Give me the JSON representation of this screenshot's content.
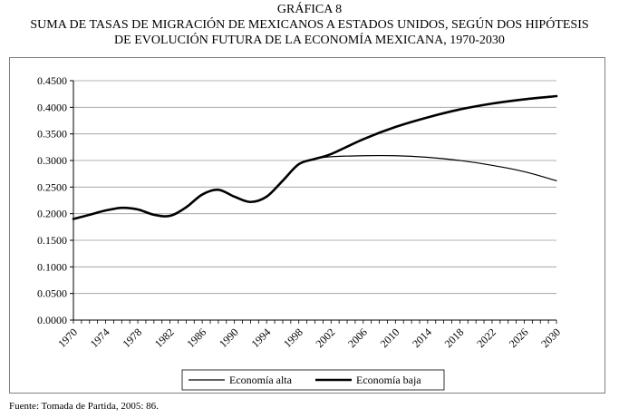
{
  "header": {
    "label": "GRÁFICA 8",
    "title_line1": "SUMA DE TASAS DE MIGRACIÓN DE MEXICANOS A ESTADOS UNIDOS, SEGÚN DOS HIPÓTESIS",
    "title_line2": "DE EVOLUCIÓN FUTURA DE LA ECONOMÍA MEXICANA, 1970-2030"
  },
  "source": "Fuente: Tomada de Partida, 2005: 86.",
  "chart_data": {
    "type": "line",
    "title": "SUMA DE TASAS DE MIGRACIÓN DE MEXICANOS A ESTADOS UNIDOS, SEGÚN DOS HIPÓTESIS DE EVOLUCIÓN FUTURA DE LA ECONOMÍA MEXICANA, 1970-2030",
    "xlabel": "",
    "ylabel": "",
    "xlim": [
      1970,
      2030
    ],
    "ylim": [
      0,
      0.45
    ],
    "x_tick_labels": [
      "1970",
      "1974",
      "1978",
      "1982",
      "1986",
      "1990",
      "1994",
      "1998",
      "2002",
      "2006",
      "2010",
      "2014",
      "2018",
      "2022",
      "2026",
      "2030"
    ],
    "y_tick_labels": [
      "0.0000",
      "0.0500",
      "0.1000",
      "0.1500",
      "0.2000",
      "0.2500",
      "0.3000",
      "0.3500",
      "0.4000",
      "0.4500"
    ],
    "grid": {
      "horizontal": true,
      "vertical": false
    },
    "legend_position": "bottom",
    "series": [
      {
        "name": "Economía alta",
        "line_weight": "thin",
        "color": "#000000",
        "x": [
          1970,
          1972,
          1974,
          1976,
          1978,
          1980,
          1982,
          1984,
          1986,
          1988,
          1990,
          1992,
          1994,
          1996,
          1998,
          2000,
          2002,
          2006,
          2010,
          2014,
          2018,
          2022,
          2026,
          2030
        ],
        "y": [
          0.19,
          0.198,
          0.206,
          0.211,
          0.208,
          0.198,
          0.196,
          0.212,
          0.236,
          0.245,
          0.232,
          0.222,
          0.232,
          0.262,
          0.293,
          0.303,
          0.307,
          0.309,
          0.309,
          0.306,
          0.3,
          0.291,
          0.279,
          0.262
        ]
      },
      {
        "name": "Economía baja",
        "line_weight": "thick",
        "color": "#000000",
        "x": [
          1970,
          1972,
          1974,
          1976,
          1978,
          1980,
          1982,
          1984,
          1986,
          1988,
          1990,
          1992,
          1994,
          1996,
          1998,
          2000,
          2002,
          2006,
          2010,
          2014,
          2018,
          2022,
          2026,
          2030
        ],
        "y": [
          0.19,
          0.198,
          0.206,
          0.211,
          0.208,
          0.198,
          0.196,
          0.212,
          0.236,
          0.245,
          0.232,
          0.222,
          0.232,
          0.262,
          0.293,
          0.303,
          0.312,
          0.34,
          0.363,
          0.381,
          0.396,
          0.407,
          0.415,
          0.421
        ]
      }
    ]
  }
}
